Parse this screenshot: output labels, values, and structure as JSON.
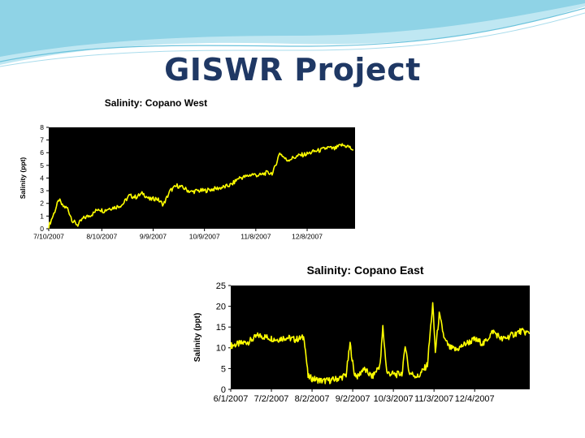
{
  "slide": {
    "title": "GISWR Project",
    "colors": {
      "title": "#1f3864",
      "banner": "#9ad7ea",
      "plot_background": "#000000",
      "series": "#ffff00"
    }
  },
  "chart_data": [
    {
      "type": "line",
      "title": "Salinity: Copano West",
      "xlabel": "",
      "ylabel": "Salinity (ppt)",
      "ylim": [
        0,
        8
      ],
      "yticks": [
        "0",
        "1",
        "2",
        "3",
        "4",
        "5",
        "6",
        "7",
        "8"
      ],
      "xlim": [
        "2007-07-10",
        "2008-01-05"
      ],
      "xticks": [
        "7/10/2007",
        "8/10/2007",
        "9/9/2007",
        "10/9/2007",
        "11/8/2007",
        "12/8/2007"
      ],
      "grid": false,
      "plot_background": "#000000",
      "series": [
        {
          "color": "#ffff00",
          "x": [
            "2007-07-10",
            "2007-07-13",
            "2007-07-16",
            "2007-07-18",
            "2007-07-21",
            "2007-07-24",
            "2007-07-27",
            "2007-07-30",
            "2007-08-02",
            "2007-08-05",
            "2007-08-08",
            "2007-08-11",
            "2007-08-14",
            "2007-08-18",
            "2007-08-22",
            "2007-08-26",
            "2007-08-30",
            "2007-09-03",
            "2007-09-07",
            "2007-09-11",
            "2007-09-15",
            "2007-09-19",
            "2007-09-23",
            "2007-09-27",
            "2007-10-01",
            "2007-10-05",
            "2007-10-09",
            "2007-10-13",
            "2007-10-17",
            "2007-10-21",
            "2007-10-25",
            "2007-10-29",
            "2007-11-02",
            "2007-11-06",
            "2007-11-10",
            "2007-11-14",
            "2007-11-18",
            "2007-11-22",
            "2007-11-26",
            "2007-11-30",
            "2007-12-04",
            "2007-12-08",
            "2007-12-12",
            "2007-12-16",
            "2007-12-20",
            "2007-12-24",
            "2007-12-28",
            "2008-01-01",
            "2008-01-04"
          ],
          "y": [
            0.2,
            1.2,
            2.3,
            1.8,
            1.6,
            0.6,
            0.3,
            0.8,
            1.0,
            1.2,
            1.6,
            1.4,
            1.6,
            1.7,
            1.9,
            2.6,
            2.5,
            2.8,
            2.3,
            2.4,
            1.9,
            3.0,
            3.4,
            3.2,
            2.9,
            3.0,
            3.0,
            3.1,
            3.2,
            3.3,
            3.5,
            4.0,
            4.1,
            4.3,
            4.2,
            4.4,
            4.4,
            6.0,
            5.4,
            5.6,
            5.8,
            5.9,
            6.1,
            6.2,
            6.4,
            6.3,
            6.6,
            6.5,
            6.2
          ]
        }
      ]
    },
    {
      "type": "line",
      "title": "Salinity: Copano East",
      "xlabel": "",
      "ylabel": "Salinity (ppt)",
      "ylim": [
        0,
        25
      ],
      "yticks": [
        "0",
        "5",
        "10",
        "15",
        "20",
        "25"
      ],
      "xlim": [
        "2007-06-01",
        "2008-01-15"
      ],
      "xticks": [
        "6/1/2007",
        "7/2/2007",
        "8/2/2007",
        "9/2/2007",
        "10/3/2007",
        "11/3/2007",
        "12/4/2007"
      ],
      "grid": false,
      "plot_background": "#000000",
      "series": [
        {
          "color": "#ffff00",
          "x": [
            "2007-06-01",
            "2007-06-08",
            "2007-06-15",
            "2007-06-22",
            "2007-06-29",
            "2007-07-06",
            "2007-07-13",
            "2007-07-20",
            "2007-07-27",
            "2007-07-30",
            "2007-08-03",
            "2007-08-10",
            "2007-08-17",
            "2007-08-24",
            "2007-08-28",
            "2007-08-31",
            "2007-09-03",
            "2007-09-06",
            "2007-09-10",
            "2007-09-17",
            "2007-09-23",
            "2007-09-25",
            "2007-09-28",
            "2007-10-05",
            "2007-10-10",
            "2007-10-12",
            "2007-10-15",
            "2007-10-22",
            "2007-10-29",
            "2007-11-02",
            "2007-11-04",
            "2007-11-07",
            "2007-11-11",
            "2007-11-15",
            "2007-11-20",
            "2007-11-27",
            "2007-12-04",
            "2007-12-11",
            "2007-12-18",
            "2007-12-25",
            "2008-01-01",
            "2008-01-08",
            "2008-01-15"
          ],
          "y": [
            10.5,
            11.0,
            11.5,
            13.0,
            12.5,
            12.0,
            12.5,
            12.0,
            12.5,
            3.0,
            2.5,
            2.0,
            2.2,
            2.8,
            3.5,
            11.0,
            4.0,
            3.0,
            5.0,
            3.0,
            6.0,
            15.0,
            4.0,
            3.5,
            4.0,
            11.0,
            4.0,
            3.0,
            6.0,
            20.5,
            9.0,
            18.0,
            12.0,
            10.0,
            9.5,
            11.0,
            12.0,
            11.0,
            14.0,
            12.0,
            13.0,
            14.0,
            13.5
          ]
        }
      ]
    }
  ]
}
